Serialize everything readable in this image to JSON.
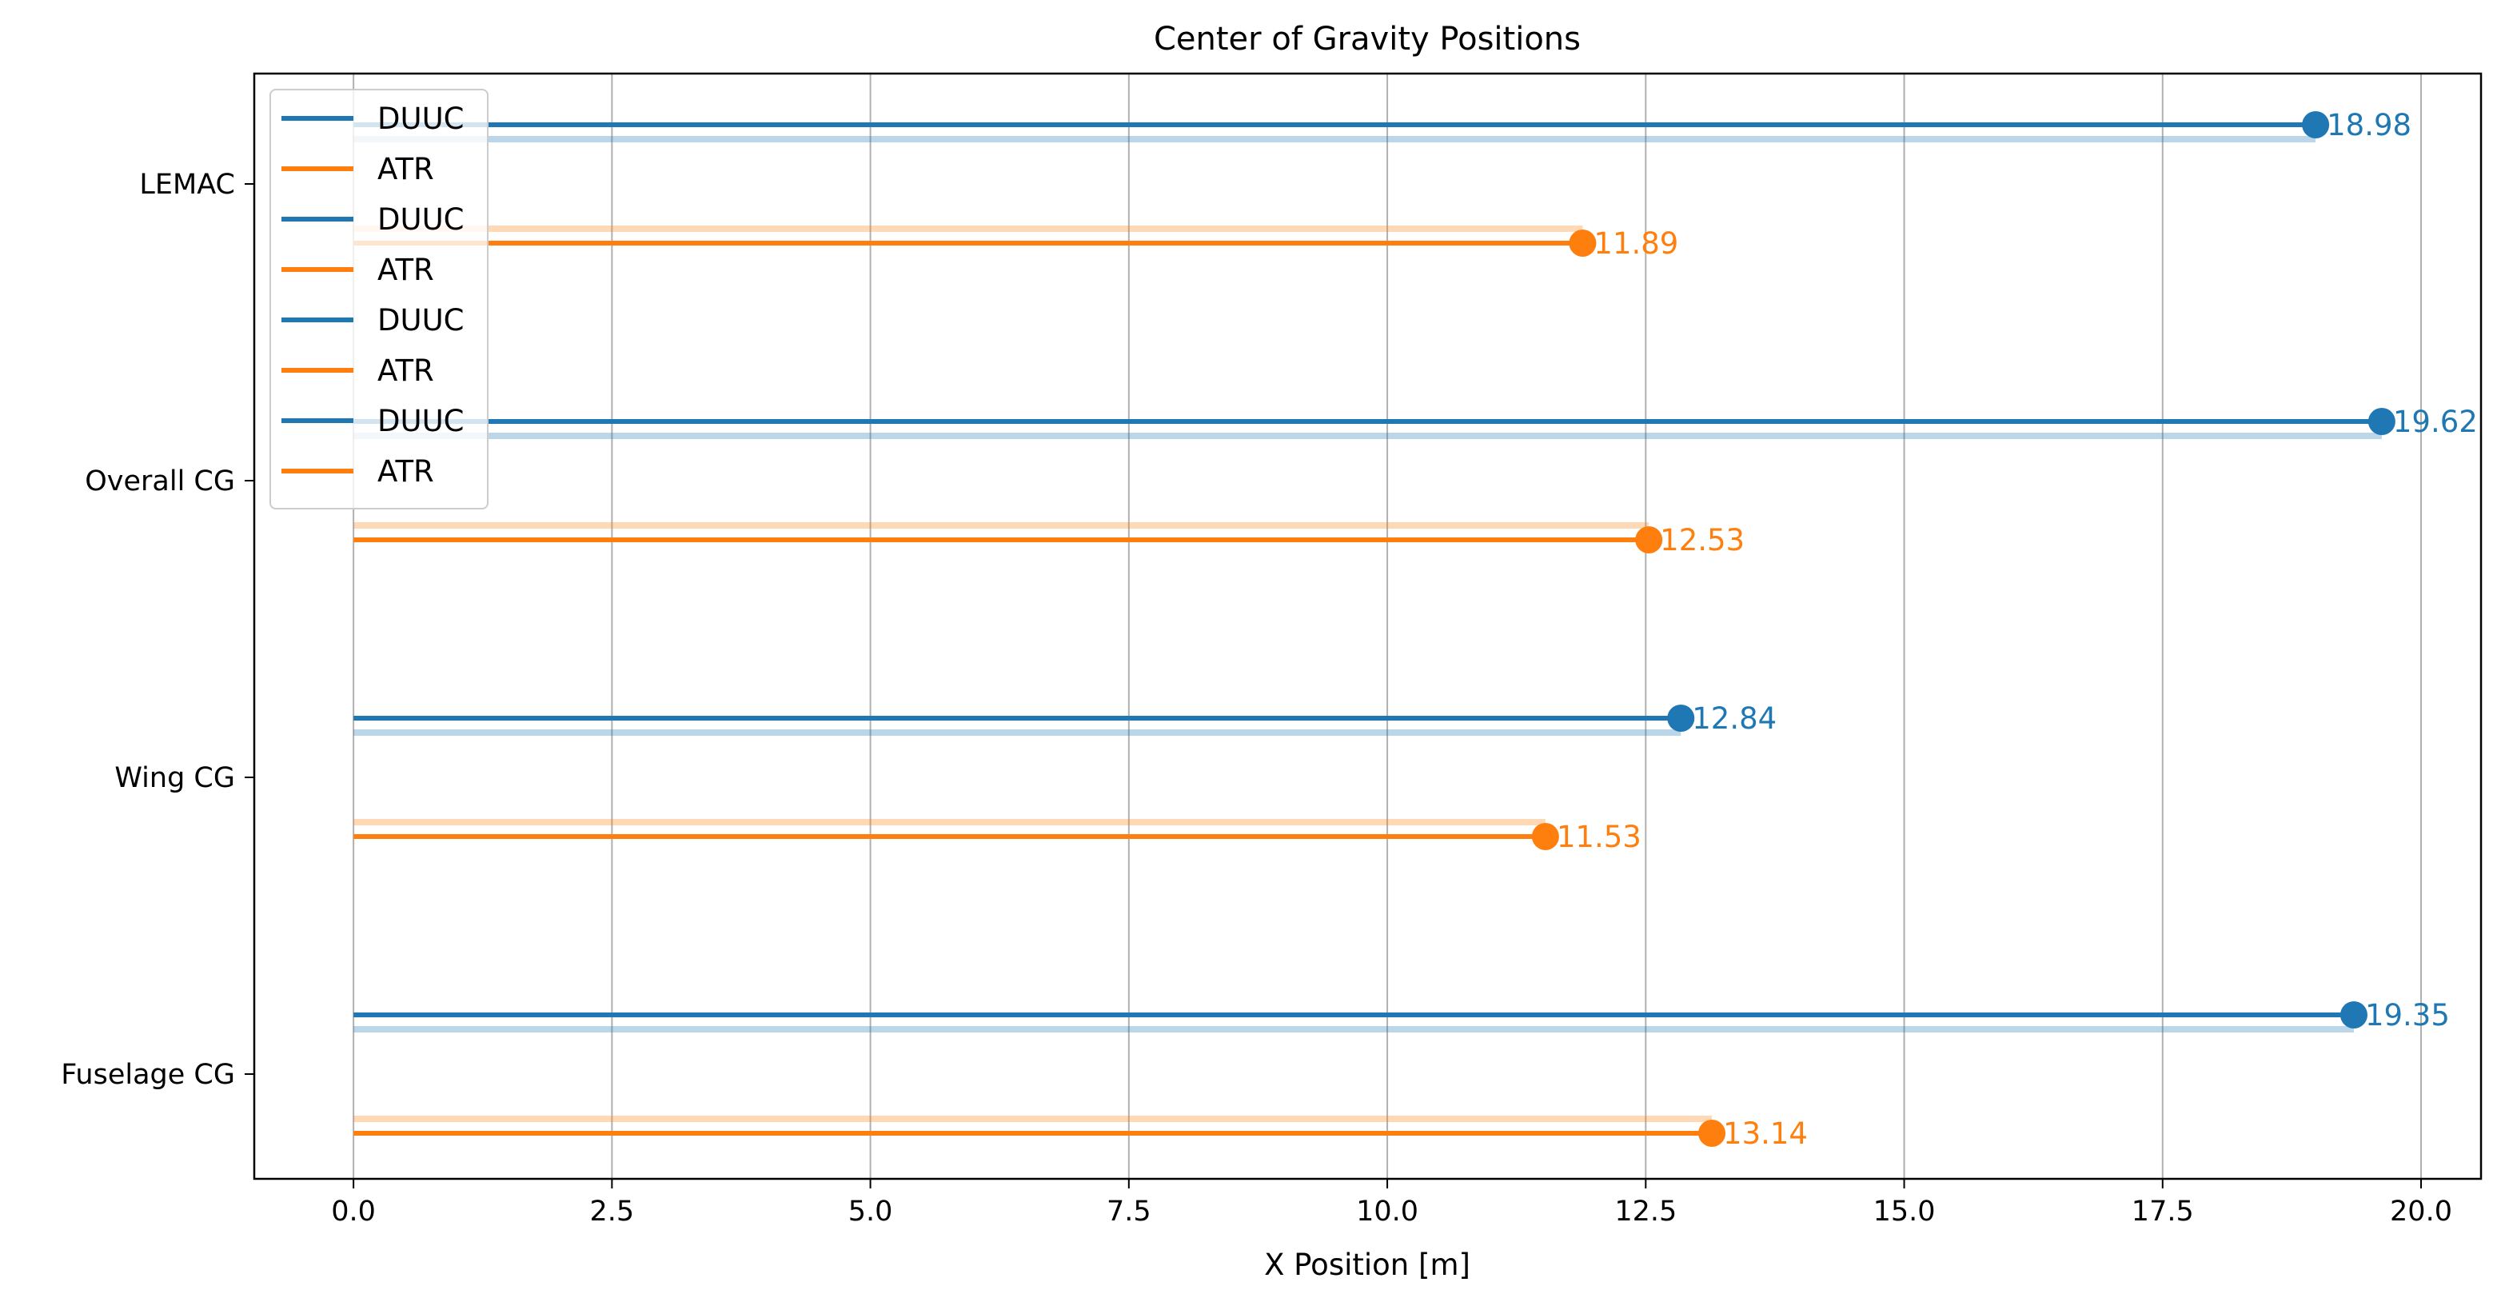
{
  "chart_data": {
    "type": "bar",
    "orientation": "horizontal",
    "style": "lollipop",
    "title": "Center of Gravity Positions",
    "xlabel": "X Position [m]",
    "ylabel": "",
    "xlim": [
      -0.96,
      20.58
    ],
    "xticks": [
      "0.0",
      "2.5",
      "5.0",
      "7.5",
      "10.0",
      "12.5",
      "15.0",
      "17.5",
      "20.0"
    ],
    "xtick_values": [
      0,
      2.5,
      5,
      7.5,
      10,
      12.5,
      15,
      17.5,
      20
    ],
    "grid": "vertical",
    "categories": [
      "LEMAC",
      "Overall CG",
      "Wing CG",
      "Fuselage CG"
    ],
    "series": [
      {
        "name": "DUUC",
        "color": "#1f77b4",
        "values": [
          18.98,
          19.62,
          12.84,
          19.35
        ],
        "labels": [
          "18.98",
          "19.62",
          "12.84",
          "19.35"
        ]
      },
      {
        "name": "ATR",
        "color": "#ff7f0e",
        "values": [
          11.89,
          12.53,
          11.53,
          13.14
        ],
        "labels": [
          "11.89",
          "12.53",
          "11.53",
          "13.14"
        ]
      }
    ],
    "legend": {
      "position": "top-left",
      "entries": [
        {
          "label": "DUUC",
          "color": "#1f77b4"
        },
        {
          "label": "ATR",
          "color": "#ff7f0e"
        },
        {
          "label": "DUUC",
          "color": "#1f77b4"
        },
        {
          "label": "ATR",
          "color": "#ff7f0e"
        },
        {
          "label": "DUUC",
          "color": "#1f77b4"
        },
        {
          "label": "ATR",
          "color": "#ff7f0e"
        },
        {
          "label": "DUUC",
          "color": "#1f77b4"
        },
        {
          "label": "ATR",
          "color": "#ff7f0e"
        }
      ]
    }
  }
}
